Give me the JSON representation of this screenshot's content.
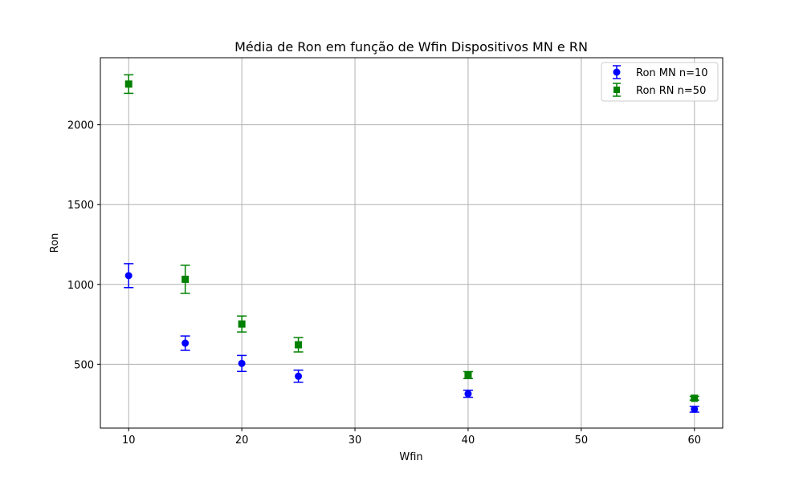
{
  "chart_data": {
    "type": "scatter",
    "title": "Média de Ron em função de Wfin Dispositivos MN e RN",
    "xlabel": "Wfin",
    "ylabel": "Ron",
    "xlim": [
      7.5,
      62.5
    ],
    "ylim": [
      100,
      2420
    ],
    "xticks": [
      10,
      20,
      30,
      40,
      50,
      60
    ],
    "yticks": [
      500,
      1000,
      1500,
      2000
    ],
    "grid": true,
    "legend_position": "top-right",
    "series": [
      {
        "name": "Ron MN n=10",
        "color": "#0000ff",
        "marker": "circle",
        "x": [
          10,
          15,
          20,
          25,
          40,
          60
        ],
        "y": [
          1055,
          632,
          505,
          425,
          315,
          218
        ],
        "err": [
          75,
          45,
          50,
          38,
          22,
          18
        ]
      },
      {
        "name": "Ron RN n=50",
        "color": "#008000",
        "marker": "square",
        "x": [
          10,
          15,
          20,
          25,
          40,
          60
        ],
        "y": [
          2255,
          1032,
          752,
          622,
          432,
          287
        ],
        "err": [
          58,
          88,
          50,
          45,
          22,
          12
        ]
      }
    ]
  }
}
